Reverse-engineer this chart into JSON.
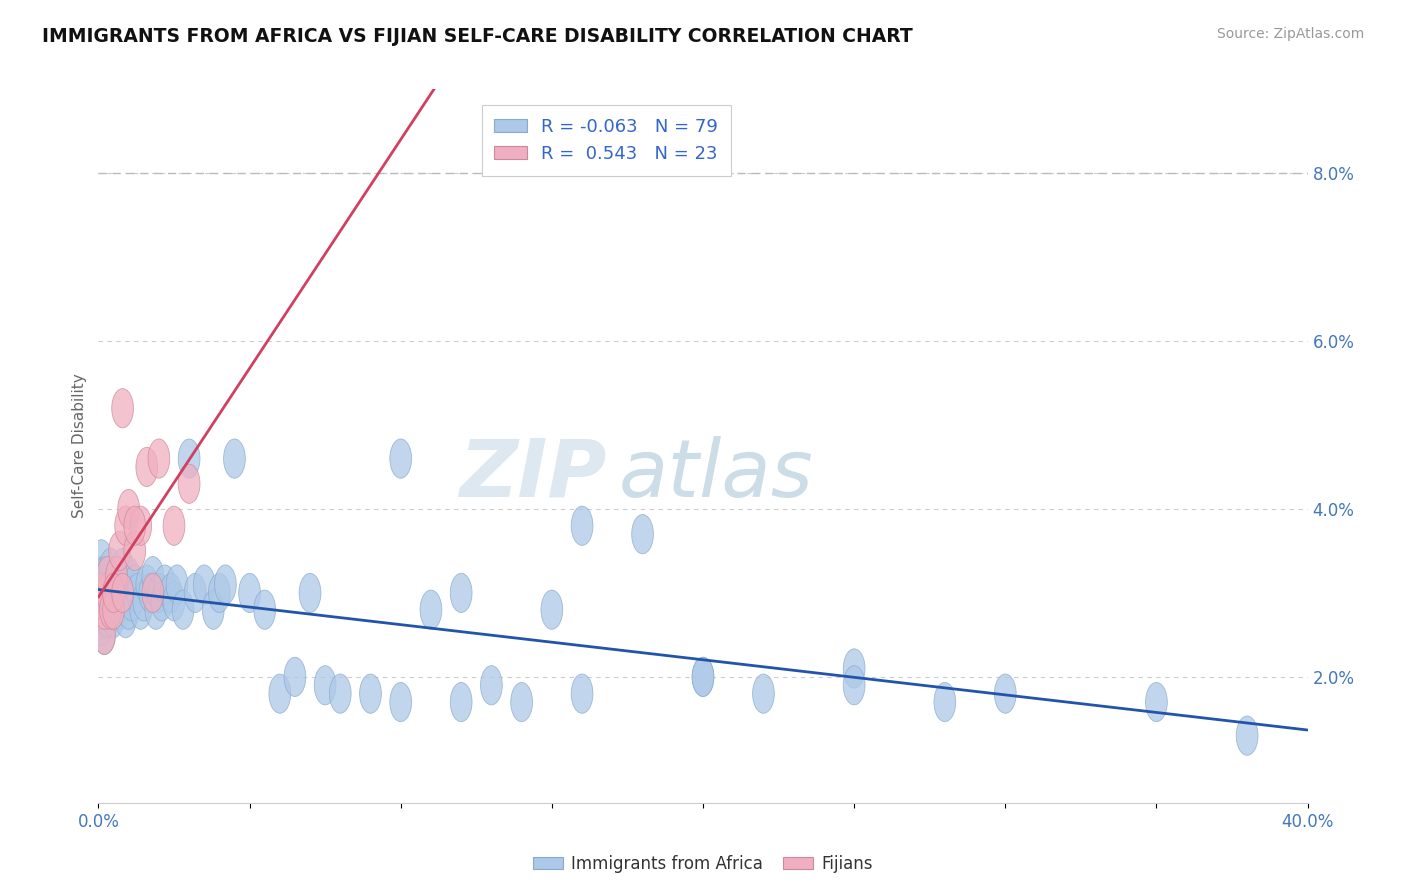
{
  "title": "IMMIGRANTS FROM AFRICA VS FIJIAN SELF-CARE DISABILITY CORRELATION CHART",
  "source": "Source: ZipAtlas.com",
  "ylabel": "Self-Care Disability",
  "xlim": [
    0.0,
    0.4
  ],
  "ylim": [
    0.005,
    0.09
  ],
  "right_yticks": [
    0.02,
    0.04,
    0.06,
    0.08
  ],
  "right_yticklabels": [
    "2.0%",
    "4.0%",
    "6.0%",
    "8.0%"
  ],
  "xticks": [
    0.0,
    0.05,
    0.1,
    0.15,
    0.2,
    0.25,
    0.3,
    0.35,
    0.4
  ],
  "xticklabels": [
    "0.0%",
    "",
    "",
    "",
    "",
    "",
    "",
    "",
    "40.0%"
  ],
  "legend_r_africa": "-0.063",
  "legend_n_africa": "79",
  "legend_r_fijian": "0.543",
  "legend_n_fijian": "23",
  "color_africa": "#adc8e8",
  "color_fijian": "#f0afc0",
  "trendline_africa_color": "#2255aa",
  "trendline_fijian_color": "#d04060",
  "background_color": "#ffffff",
  "gridline_color": "#cccccc",
  "gridline_dashes": [
    4,
    4
  ],
  "top_dashed_color": "#bbbbbb",
  "africa_x": [
    0.001,
    0.001,
    0.001,
    0.001,
    0.001,
    0.002,
    0.002,
    0.002,
    0.002,
    0.003,
    0.003,
    0.003,
    0.004,
    0.004,
    0.004,
    0.005,
    0.005,
    0.005,
    0.006,
    0.006,
    0.007,
    0.007,
    0.008,
    0.008,
    0.009,
    0.009,
    0.01,
    0.01,
    0.011,
    0.012,
    0.013,
    0.014,
    0.015,
    0.016,
    0.017,
    0.018,
    0.019,
    0.02,
    0.021,
    0.022,
    0.024,
    0.025,
    0.026,
    0.028,
    0.03,
    0.032,
    0.035,
    0.038,
    0.04,
    0.042,
    0.045,
    0.05,
    0.055,
    0.06,
    0.065,
    0.07,
    0.075,
    0.08,
    0.09,
    0.1,
    0.11,
    0.12,
    0.13,
    0.14,
    0.16,
    0.18,
    0.2,
    0.22,
    0.25,
    0.28,
    0.1,
    0.12,
    0.15,
    0.16,
    0.2,
    0.25,
    0.3,
    0.35,
    0.38
  ],
  "africa_y": [
    0.03,
    0.032,
    0.028,
    0.034,
    0.026,
    0.03,
    0.028,
    0.032,
    0.025,
    0.029,
    0.031,
    0.027,
    0.03,
    0.033,
    0.028,
    0.029,
    0.031,
    0.027,
    0.03,
    0.032,
    0.028,
    0.031,
    0.029,
    0.033,
    0.027,
    0.03,
    0.028,
    0.032,
    0.029,
    0.031,
    0.03,
    0.028,
    0.029,
    0.031,
    0.03,
    0.032,
    0.028,
    0.03,
    0.029,
    0.031,
    0.03,
    0.029,
    0.031,
    0.028,
    0.046,
    0.03,
    0.031,
    0.028,
    0.03,
    0.031,
    0.046,
    0.03,
    0.028,
    0.018,
    0.02,
    0.03,
    0.019,
    0.018,
    0.018,
    0.017,
    0.028,
    0.017,
    0.019,
    0.017,
    0.038,
    0.037,
    0.02,
    0.018,
    0.021,
    0.017,
    0.046,
    0.03,
    0.028,
    0.018,
    0.02,
    0.019,
    0.018,
    0.017,
    0.013
  ],
  "fijian_x": [
    0.001,
    0.001,
    0.002,
    0.002,
    0.003,
    0.003,
    0.004,
    0.005,
    0.006,
    0.007,
    0.008,
    0.009,
    0.01,
    0.012,
    0.014,
    0.016,
    0.018,
    0.02,
    0.025,
    0.03,
    0.005,
    0.008,
    0.012
  ],
  "fijian_y": [
    0.028,
    0.03,
    0.025,
    0.028,
    0.03,
    0.032,
    0.028,
    0.028,
    0.032,
    0.035,
    0.052,
    0.038,
    0.04,
    0.035,
    0.038,
    0.045,
    0.03,
    0.046,
    0.038,
    0.043,
    0.03,
    0.03,
    0.038
  ]
}
